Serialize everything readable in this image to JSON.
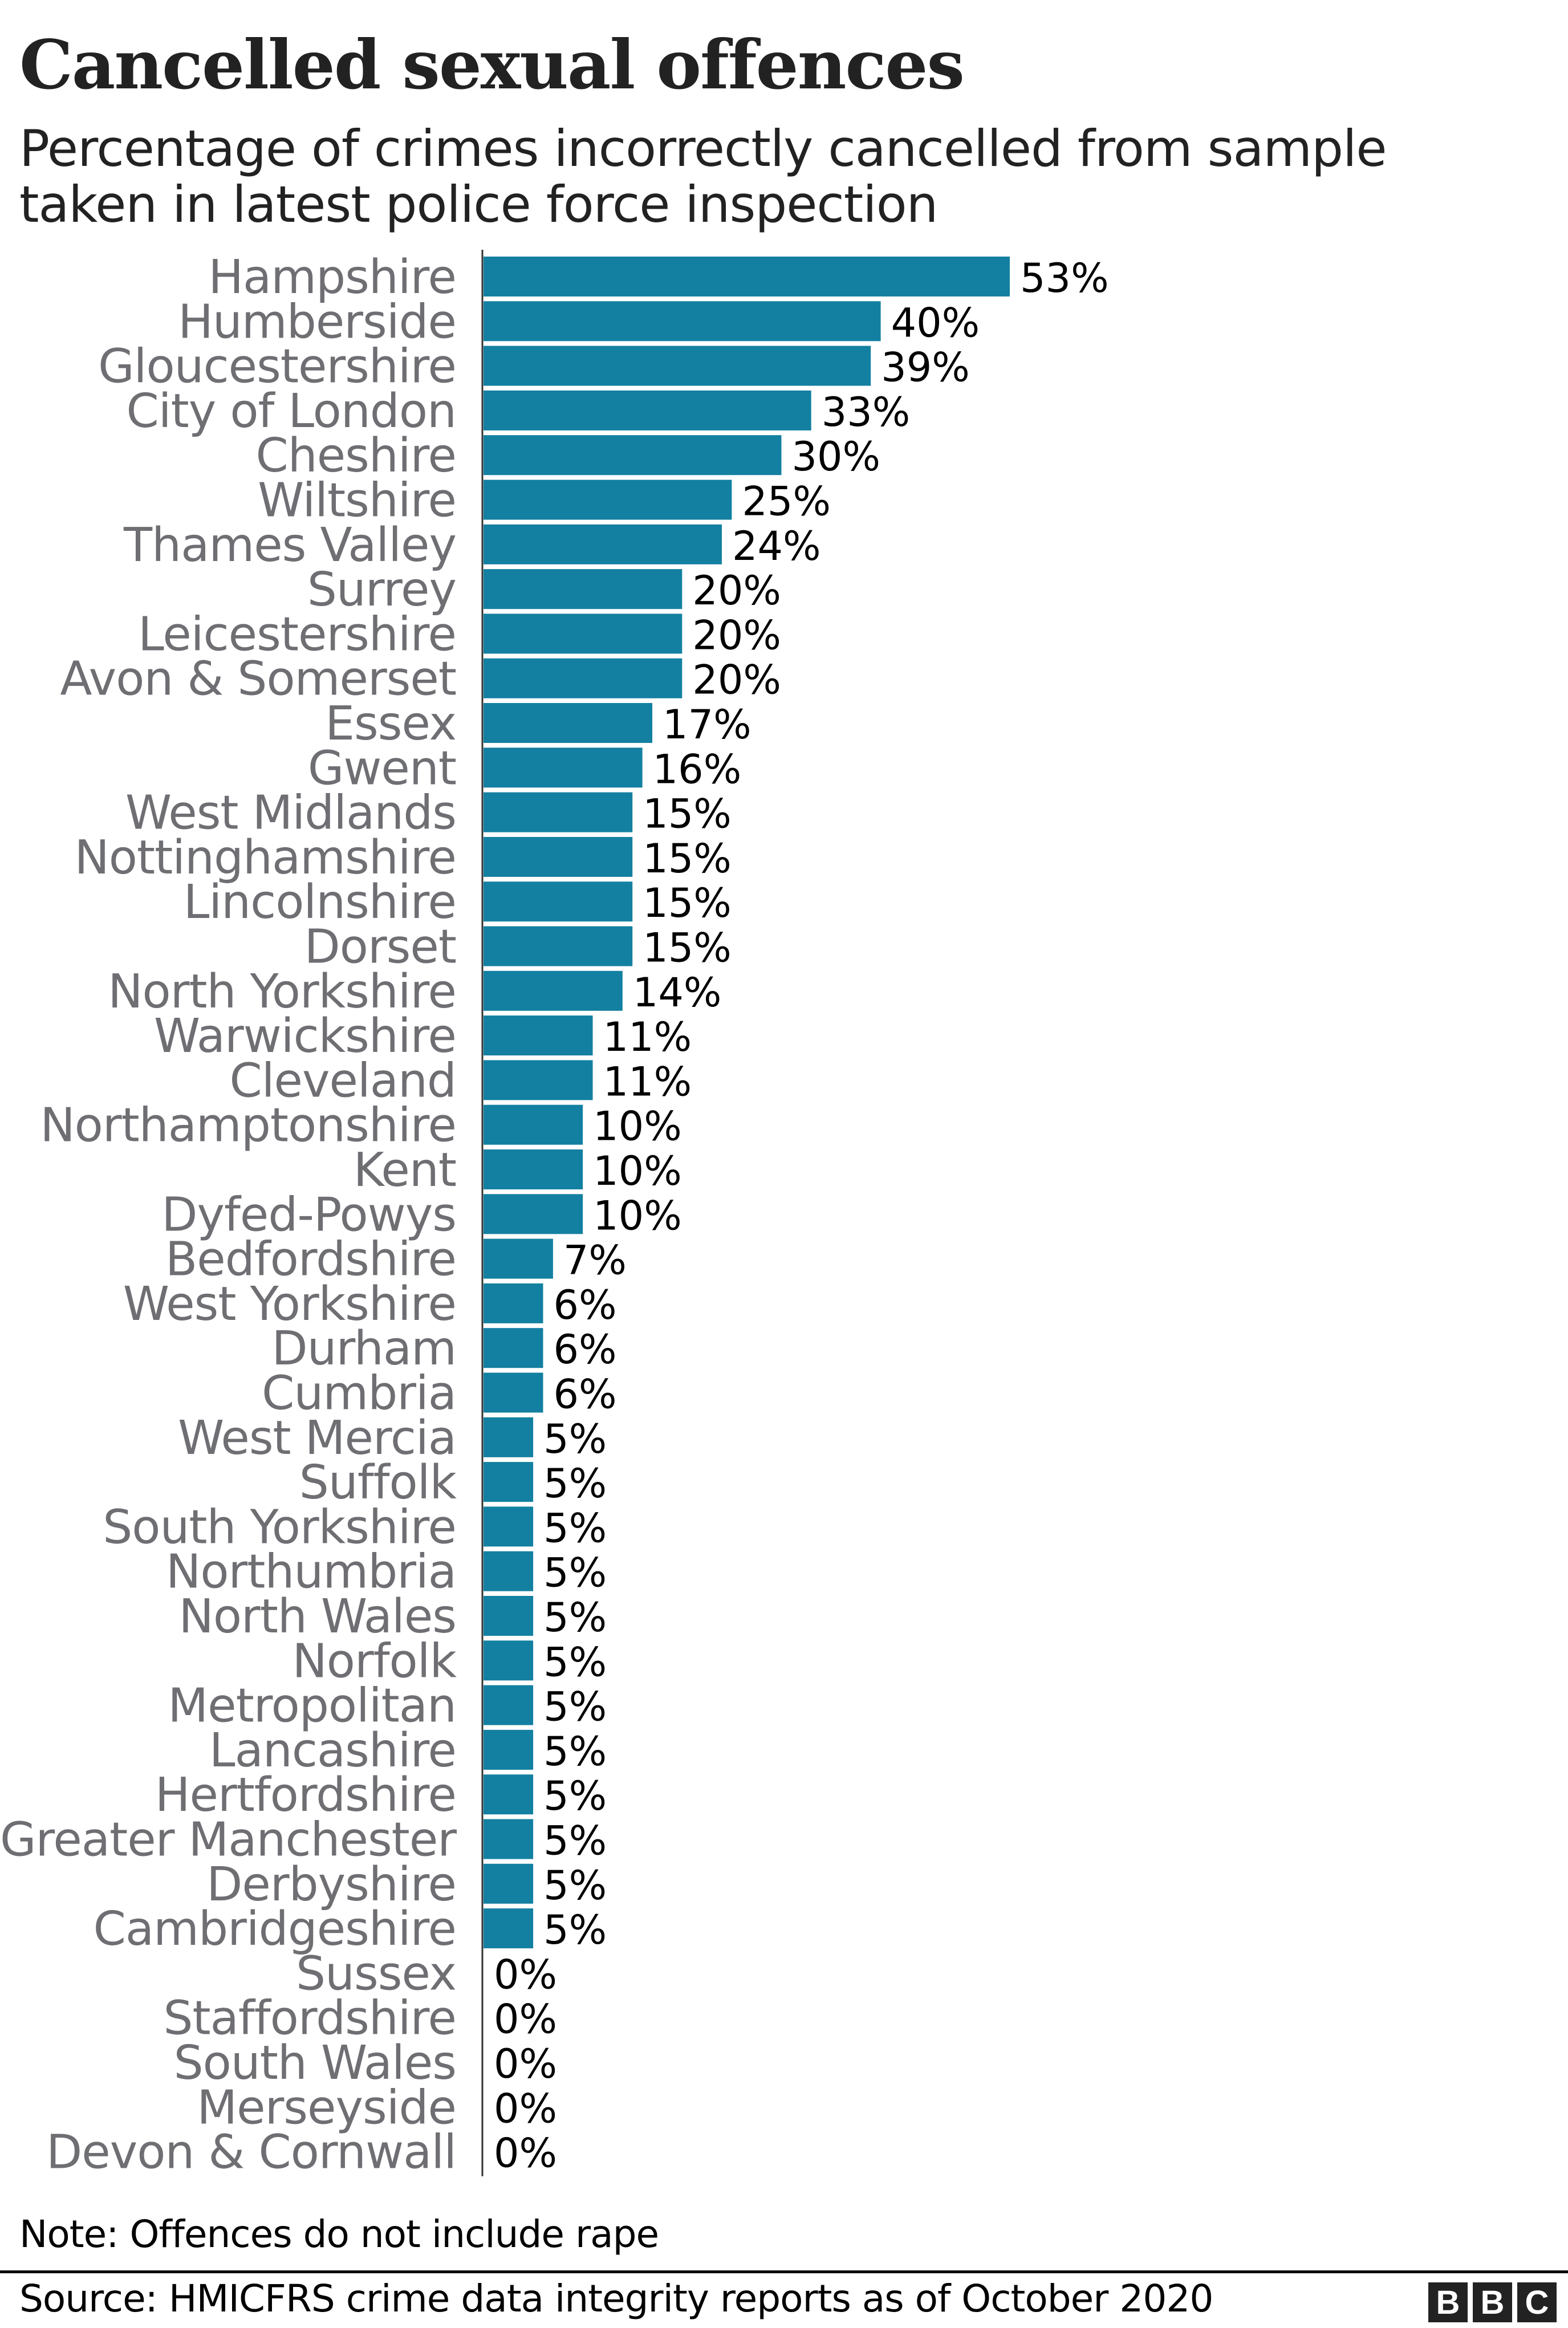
{
  "chart_data": {
    "type": "bar",
    "orientation": "horizontal",
    "title": "Cancelled sexual offences",
    "subtitle": "Percentage of crimes incorrectly cancelled from sample taken in latest police force inspection",
    "categories": [
      "Hampshire",
      "Humberside",
      "Gloucestershire",
      "City of London",
      "Cheshire",
      "Wiltshire",
      "Thames Valley",
      "Surrey",
      "Leicestershire",
      "Avon & Somerset",
      "Essex",
      "Gwent",
      "West Midlands",
      "Nottinghamshire",
      "Lincolnshire",
      "Dorset",
      "North Yorkshire",
      "Warwickshire",
      "Cleveland",
      "Northamptonshire",
      "Kent",
      "Dyfed-Powys",
      "Bedfordshire",
      "West Yorkshire",
      "Durham",
      "Cumbria",
      "West Mercia",
      "Suffolk",
      "South Yorkshire",
      "Northumbria",
      "North Wales",
      "Norfolk",
      "Metropolitan",
      "Lancashire",
      "Hertfordshire",
      "Greater Manchester",
      "Derbyshire",
      "Cambridgeshire",
      "Sussex",
      "Staffordshire",
      "South Wales",
      "Merseyside",
      "Devon & Cornwall"
    ],
    "values": [
      53,
      40,
      39,
      33,
      30,
      25,
      24,
      20,
      20,
      20,
      17,
      16,
      15,
      15,
      15,
      15,
      14,
      11,
      11,
      10,
      10,
      10,
      7,
      6,
      6,
      6,
      5,
      5,
      5,
      5,
      5,
      5,
      5,
      5,
      5,
      5,
      5,
      5,
      0,
      0,
      0,
      0,
      0
    ],
    "value_suffix": "%",
    "xlim": [
      0,
      53
    ],
    "grid": false,
    "bar_color": "#1380A1",
    "label_color": "#6e6e73"
  },
  "note": "Note: Offences do not include rape",
  "source": "Source: HMICFRS crime data integrity reports as of October 2020",
  "logo": [
    "B",
    "B",
    "C"
  ]
}
